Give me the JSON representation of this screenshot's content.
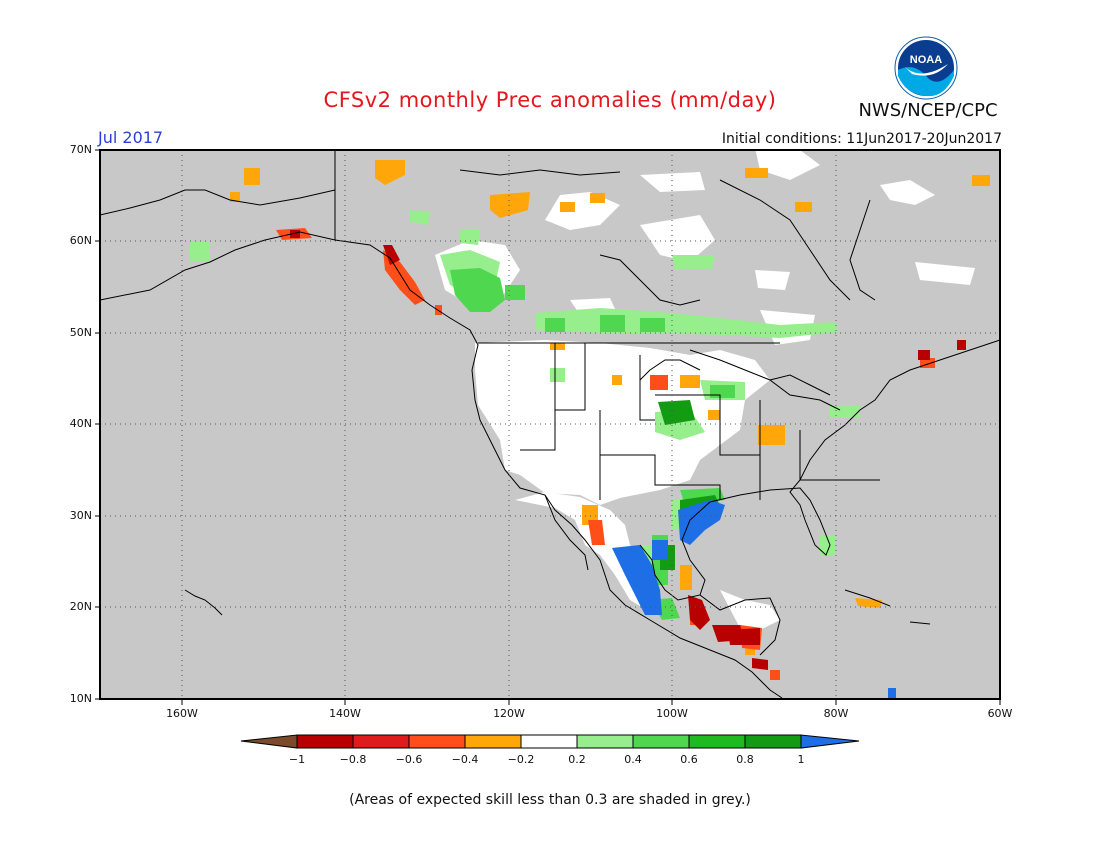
{
  "header": {
    "title": "CFSv2 monthly Prec anomalies (mm/day)",
    "org": "NWS/NCEP/CPC",
    "logo_text": "NOAA",
    "month": "Jul 2017",
    "initial_conditions": "Initial conditions: 11Jun2017-20Jun2017"
  },
  "axes": {
    "lat_labels": [
      "70N",
      "60N",
      "50N",
      "40N",
      "30N",
      "20N",
      "10N"
    ],
    "lon_labels": [
      "160W",
      "140W",
      "120W",
      "100W",
      "80W",
      "60W"
    ]
  },
  "legend": {
    "colors": {
      "lt_m1": "#7a4a2a",
      "m1_m08": "#b80000",
      "m08_m06": "#de1c1c",
      "m06_m04": "#ff4e1a",
      "m04_m02": "#ffa60a",
      "m02_02": "#ffffff",
      "p02_04": "#96ee8c",
      "p04_06": "#4fd84f",
      "p06_08": "#1fba1f",
      "p08_1": "#139c13",
      "gt_1": "#1e6ee6"
    },
    "tick_labels": [
      "−1",
      "−0.8",
      "−0.6",
      "−0.4",
      "−0.2",
      "0.2",
      "0.4",
      "0.6",
      "0.8",
      "1"
    ]
  },
  "map_colors": {
    "skill_grey": "#c8c8c8",
    "no_signal_white": "#ffffff",
    "coast": "#000000"
  },
  "footer": {
    "note": "(Areas of expected skill less than 0.3 are shaded in grey.)"
  }
}
